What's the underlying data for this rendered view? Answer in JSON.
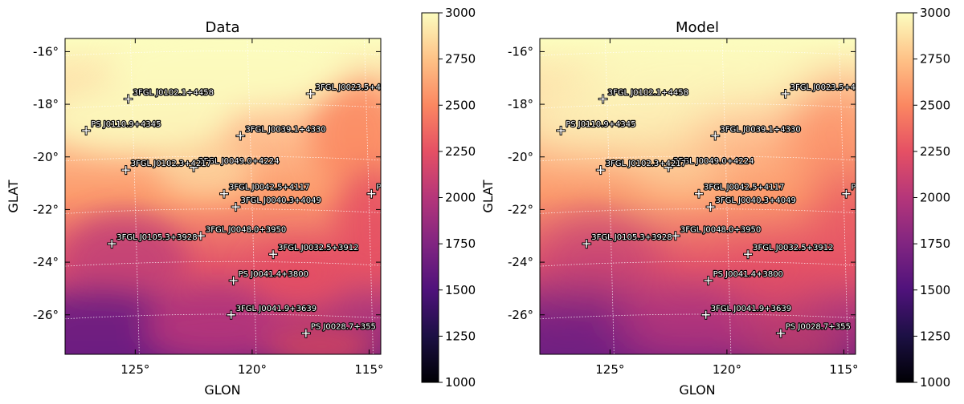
{
  "colors": {
    "colormap": [
      "#000004",
      "#1c1044",
      "#4f127b",
      "#812581",
      "#b5367a",
      "#e55064",
      "#fb8761",
      "#fec287",
      "#fcfdbf"
    ],
    "marker": "#ffffff",
    "grid": "#ffffff"
  },
  "chart_data": [
    {
      "type": "heatmap",
      "title": "Data",
      "xlabel": "GLON",
      "ylabel": "GLAT",
      "x_ticks": [
        "125°",
        "120°",
        "115°"
      ],
      "y_ticks": [
        "-16°",
        "-18°",
        "-20°",
        "-22°",
        "-24°",
        "-26°"
      ],
      "xlim": [
        128.0,
        114.5
      ],
      "ylim": [
        -27.5,
        -15.5
      ],
      "grid": true,
      "colorbar": {
        "range": [
          1000,
          3000
        ],
        "ticks": [
          "1000",
          "1250",
          "1500",
          "1750",
          "2000",
          "2250",
          "2500",
          "2750",
          "3000"
        ]
      },
      "sources": [
        {
          "name": "3FGL J0102.1+4458",
          "glon": 125.3,
          "glat": -17.8
        },
        {
          "name": "3FGL J0023.5+4",
          "glon": 117.5,
          "glat": -17.6
        },
        {
          "name": "PS J0110.9+4345",
          "glon": 127.1,
          "glat": -19.0
        },
        {
          "name": "3FGL J0039.1+4330",
          "glon": 120.5,
          "glat": -19.2
        },
        {
          "name": "3FGL J0049.0+4224",
          "glon": 122.5,
          "glat": -20.4
        },
        {
          "name": "3FGL J0102.3+4217",
          "glon": 125.4,
          "glat": -20.5
        },
        {
          "name": "3FGL J0042.5+4117",
          "glon": 121.2,
          "glat": -21.4
        },
        {
          "name": "PS",
          "glon": 114.9,
          "glat": -21.4
        },
        {
          "name": "3FGL J0040.3+4049",
          "glon": 120.7,
          "glat": -21.9
        },
        {
          "name": "3FGL J0048.0+3950",
          "glon": 122.2,
          "glat": -23.0
        },
        {
          "name": "3FGL J0105.3+3928",
          "glon": 126.0,
          "glat": -23.3
        },
        {
          "name": "3FGL J0032.5+3912",
          "glon": 119.1,
          "glat": -23.7
        },
        {
          "name": "PS J0041.4+3800",
          "glon": 120.8,
          "glat": -24.7
        },
        {
          "name": "3FGL J0041.9+3639",
          "glon": 120.9,
          "glat": -26.0
        },
        {
          "name": "PS J0028.7+355",
          "glon": 117.7,
          "glat": -26.7
        }
      ]
    },
    {
      "type": "heatmap",
      "title": "Model",
      "xlabel": "GLON",
      "ylabel": "GLAT",
      "x_ticks": [
        "125°",
        "120°",
        "115°"
      ],
      "y_ticks": [
        "-16°",
        "-18°",
        "-20°",
        "-22°",
        "-24°",
        "-26°"
      ],
      "xlim": [
        128.0,
        114.5
      ],
      "ylim": [
        -27.5,
        -15.5
      ],
      "grid": true,
      "colorbar": {
        "range": [
          1000,
          3000
        ],
        "ticks": [
          "1000",
          "1250",
          "1500",
          "1750",
          "2000",
          "2250",
          "2500",
          "2750",
          "3000"
        ]
      },
      "sources": [
        {
          "name": "3FGL J0102.1+4458",
          "glon": 125.3,
          "glat": -17.8
        },
        {
          "name": "3FGL J0023.5+4",
          "glon": 117.5,
          "glat": -17.6
        },
        {
          "name": "PS J0110.9+4345",
          "glon": 127.1,
          "glat": -19.0
        },
        {
          "name": "3FGL J0039.1+4330",
          "glon": 120.5,
          "glat": -19.2
        },
        {
          "name": "3FGL J0049.0+4224",
          "glon": 122.5,
          "glat": -20.4
        },
        {
          "name": "3FGL J0102.3+4217",
          "glon": 125.4,
          "glat": -20.5
        },
        {
          "name": "3FGL J0042.5+4117",
          "glon": 121.2,
          "glat": -21.4
        },
        {
          "name": "PS",
          "glon": 114.9,
          "glat": -21.4
        },
        {
          "name": "3FGL J0040.3+4049",
          "glon": 120.7,
          "glat": -21.9
        },
        {
          "name": "3FGL J0048.0+3950",
          "glon": 122.2,
          "glat": -23.0
        },
        {
          "name": "3FGL J0105.3+3928",
          "glon": 126.0,
          "glat": -23.3
        },
        {
          "name": "3FGL J0032.5+3912",
          "glon": 119.1,
          "glat": -23.7
        },
        {
          "name": "PS J0041.4+3800",
          "glon": 120.8,
          "glat": -24.7
        },
        {
          "name": "3FGL J0041.9+3639",
          "glon": 120.9,
          "glat": -26.0
        },
        {
          "name": "PS J0028.7+355",
          "glon": 117.7,
          "glat": -26.7
        }
      ]
    }
  ]
}
